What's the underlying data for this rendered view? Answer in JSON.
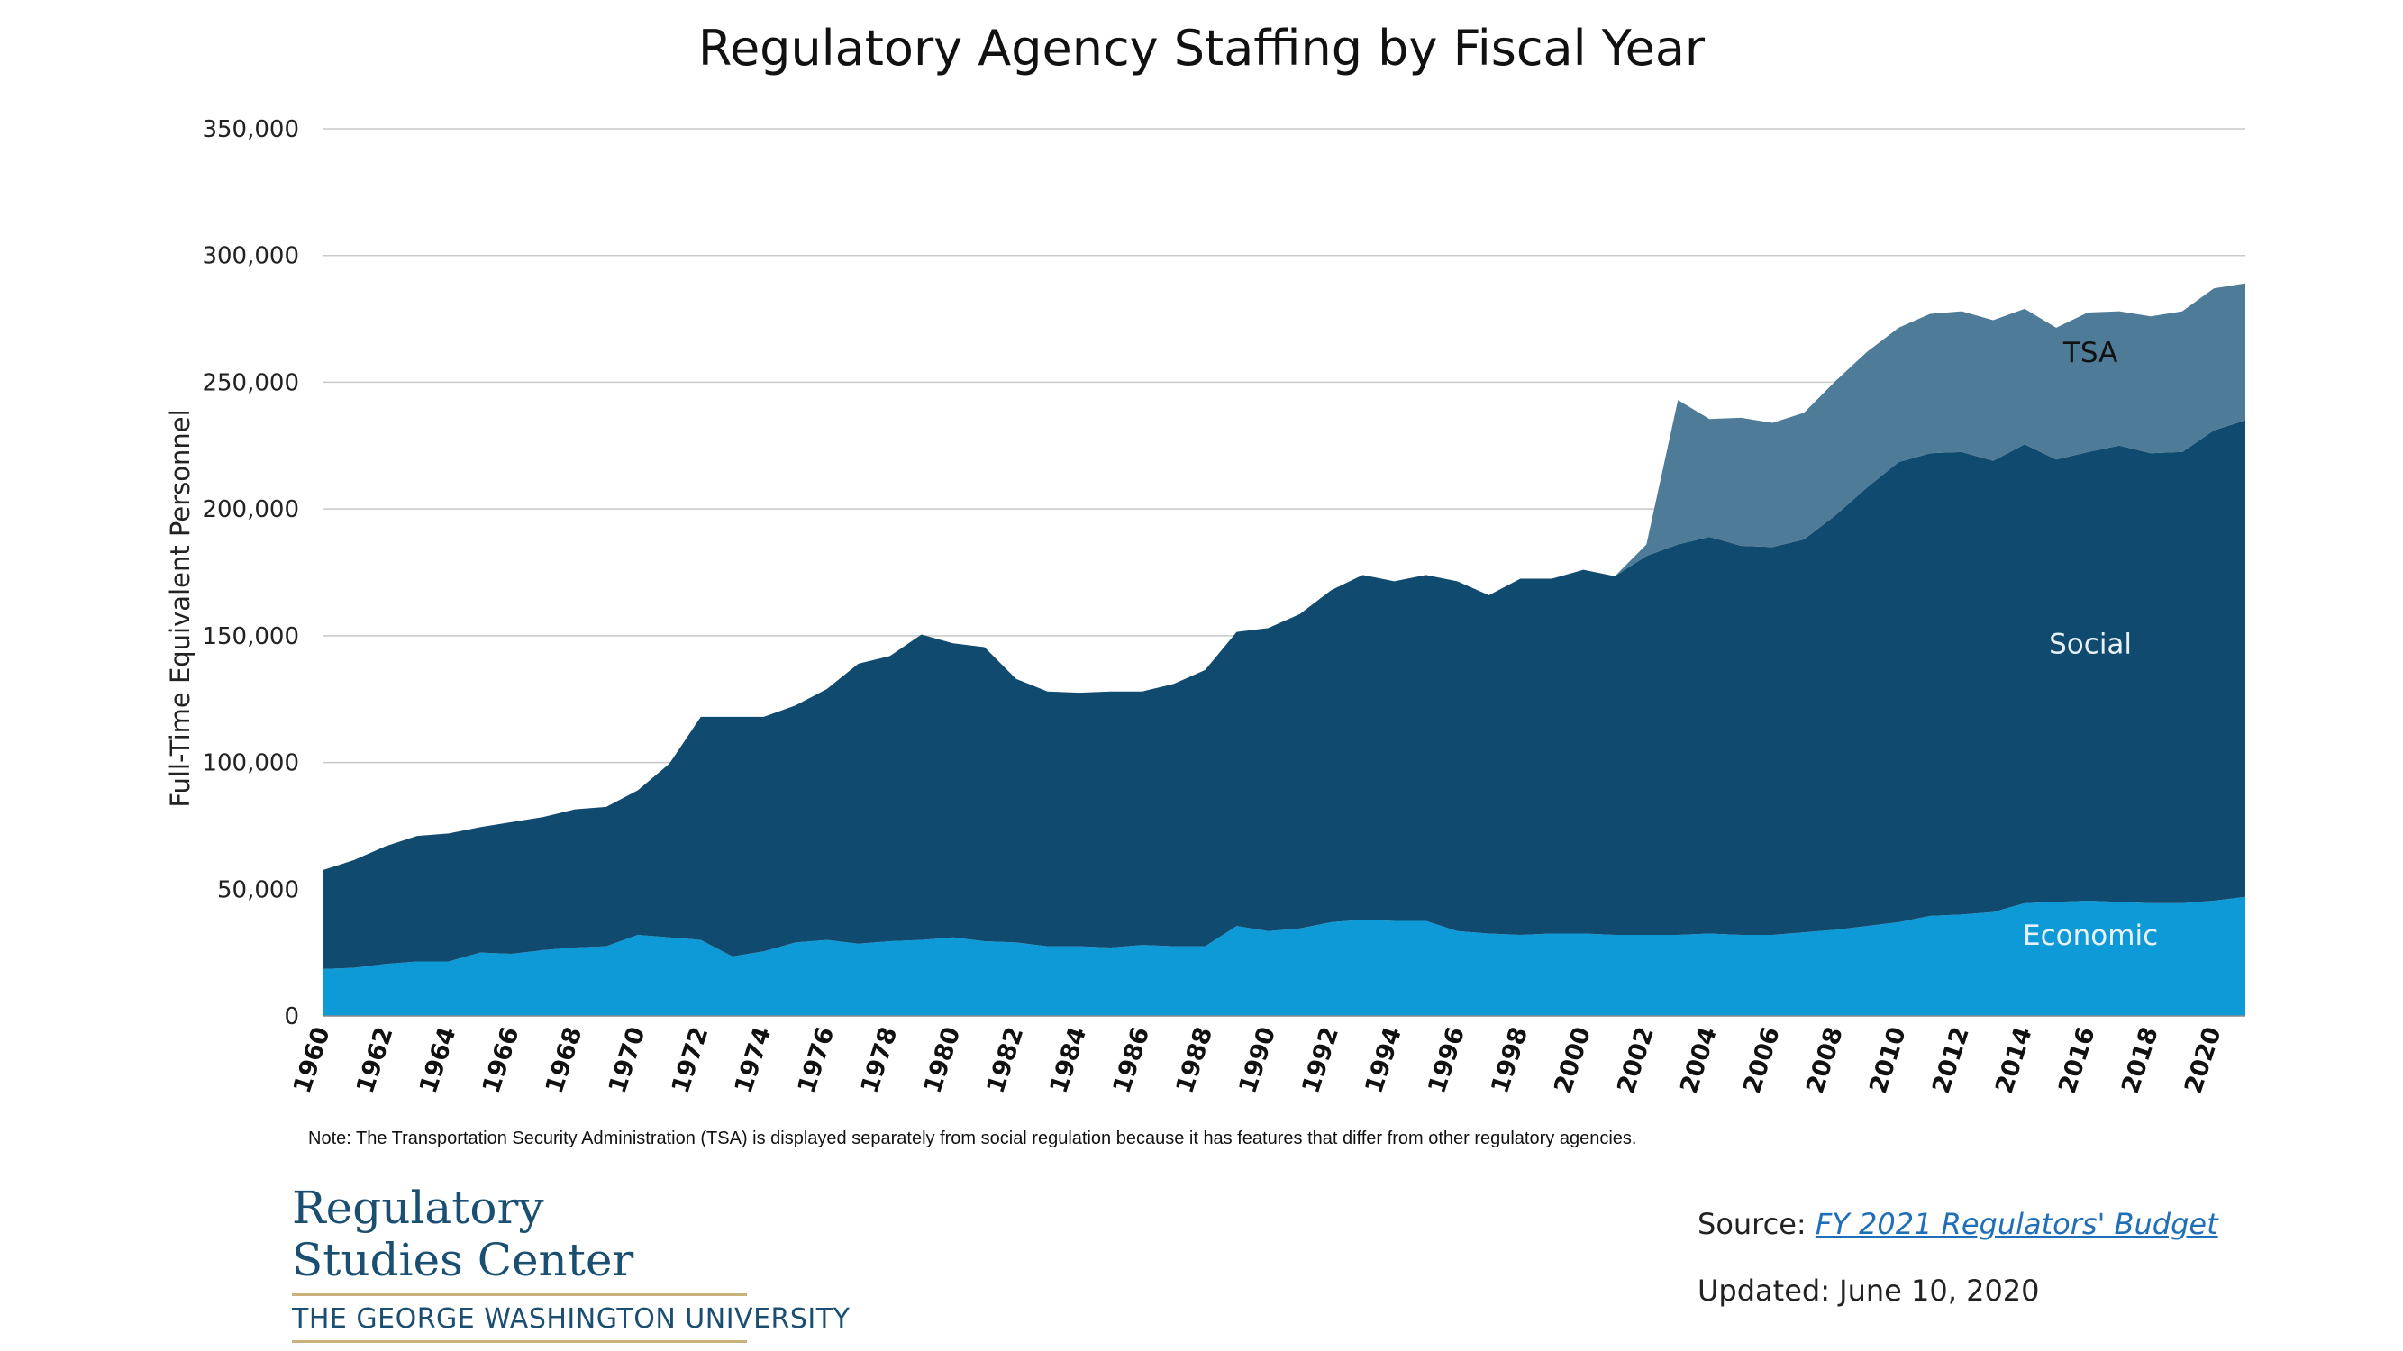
{
  "colors": {
    "economic": "#0e9ad7",
    "social": "#114a6f",
    "tsa": "#4e7b98",
    "grid": "#c8c8c8"
  },
  "chart_data": {
    "type": "area",
    "stacked": true,
    "title": "Regulatory Agency Staffing by Fiscal Year",
    "ylabel": "Full-Time Equivalent Personnel",
    "xlabel": "",
    "ylim": [
      0,
      350000
    ],
    "yticks": [
      0,
      50000,
      100000,
      150000,
      200000,
      250000,
      300000,
      350000
    ],
    "ytick_labels": [
      "0",
      "50,000",
      "100,000",
      "150,000",
      "200,000",
      "250,000",
      "300,000",
      "350,000"
    ],
    "x": [
      1960,
      1961,
      1962,
      1963,
      1964,
      1965,
      1966,
      1967,
      1968,
      1969,
      1970,
      1971,
      1972,
      1973,
      1974,
      1975,
      1976,
      1977,
      1978,
      1979,
      1980,
      1981,
      1982,
      1983,
      1984,
      1985,
      1986,
      1987,
      1988,
      1989,
      1990,
      1991,
      1992,
      1993,
      1994,
      1995,
      1996,
      1997,
      1998,
      1999,
      2000,
      2001,
      2002,
      2003,
      2004,
      2005,
      2006,
      2007,
      2008,
      2009,
      2010,
      2011,
      2012,
      2013,
      2014,
      2015,
      2016,
      2017,
      2018,
      2019,
      2020,
      2021
    ],
    "xtick_labels": [
      "1960",
      "1962",
      "1964",
      "1966",
      "1968",
      "1970",
      "1972",
      "1974",
      "1976",
      "1978",
      "1980",
      "1982",
      "1984",
      "1986",
      "1988",
      "1990",
      "1992",
      "1994",
      "1996",
      "1998",
      "2000",
      "2002",
      "2004",
      "2006",
      "2008",
      "2010",
      "2012",
      "2014",
      "2016",
      "2018",
      "2020"
    ],
    "grid": true,
    "series": [
      {
        "name": "Economic",
        "color": "#0e9ad7",
        "values": [
          18500,
          19000,
          20500,
          21500,
          21500,
          25000,
          24500,
          26000,
          27000,
          27500,
          32000,
          31000,
          30000,
          23500,
          25500,
          29000,
          30000,
          28500,
          29500,
          30000,
          31000,
          29500,
          29000,
          27500,
          27500,
          27000,
          28000,
          27500,
          27500,
          35500,
          33500,
          34500,
          37000,
          38000,
          37500,
          37500,
          33500,
          32500,
          32000,
          32500,
          32500,
          32000,
          32000,
          32000,
          32500,
          32000,
          32000,
          33000,
          34000,
          35500,
          37000,
          39500,
          40000,
          41000,
          44500,
          45000,
          45500,
          45000,
          44500,
          44500,
          45500,
          47000
        ]
      },
      {
        "name": "Social",
        "color": "#114a6f",
        "values": [
          39000,
          42500,
          46500,
          49500,
          50500,
          49500,
          52000,
          52500,
          54500,
          55000,
          57000,
          68500,
          88000,
          94500,
          92500,
          93500,
          99000,
          110500,
          112500,
          120500,
          116000,
          116000,
          104000,
          100500,
          100000,
          101000,
          100000,
          103500,
          109000,
          116000,
          119500,
          124000,
          131000,
          136000,
          134000,
          136500,
          138000,
          133500,
          140500,
          140000,
          143500,
          141500,
          149500,
          154000,
          156500,
          153500,
          153000,
          155000,
          163500,
          173000,
          181500,
          182500,
          182500,
          178000,
          181000,
          174500,
          177000,
          180000,
          177500,
          178000,
          185500,
          188000
        ]
      },
      {
        "name": "TSA",
        "color": "#4e7b98",
        "values": [
          0,
          0,
          0,
          0,
          0,
          0,
          0,
          0,
          0,
          0,
          0,
          0,
          0,
          0,
          0,
          0,
          0,
          0,
          0,
          0,
          0,
          0,
          0,
          0,
          0,
          0,
          0,
          0,
          0,
          0,
          0,
          0,
          0,
          0,
          0,
          0,
          0,
          0,
          0,
          0,
          0,
          0,
          4500,
          57000,
          46500,
          50500,
          49000,
          50000,
          53000,
          53500,
          53000,
          55000,
          55500,
          55500,
          53500,
          52000,
          55000,
          53000,
          54000,
          55500,
          56000,
          54000
        ]
      }
    ],
    "annotations": [
      {
        "text": "TSA",
        "x": 2015,
        "y": 258000
      },
      {
        "text": "Social",
        "x": 2015,
        "y": 143000
      },
      {
        "text": "Economic",
        "x": 2015,
        "y": 28000
      }
    ]
  },
  "note": "Note: The Transportation Security Administration (TSA) is displayed separately from social regulation because it has features that differ from other regulatory agencies.",
  "logo": {
    "line1": "Regulatory",
    "line2": "Studies Center",
    "university": "THE GEORGE WASHINGTON UNIVERSITY"
  },
  "source": {
    "prefix": "Source: ",
    "link_text": "FY 2021 Regulators' Budget"
  },
  "updated": "Updated: June 10, 2020"
}
